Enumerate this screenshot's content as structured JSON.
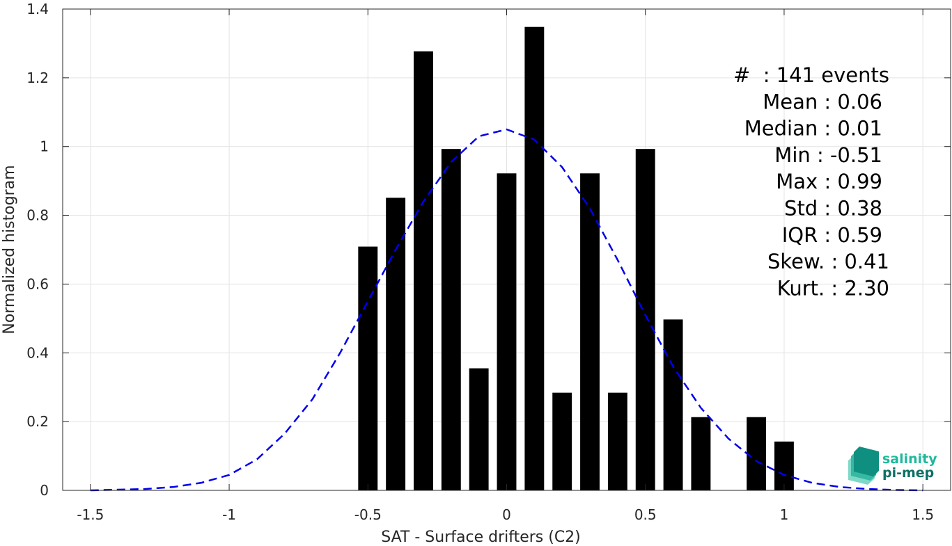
{
  "chart_data": {
    "type": "bar",
    "xlabel": "SAT - Surface drifters (C2)",
    "ylabel": "Normalized histogram",
    "xlim": [
      -1.6,
      1.6
    ],
    "ylim": [
      0,
      1.4
    ],
    "x_ticks": [
      -1.5,
      -1,
      -0.5,
      0,
      0.5,
      1,
      1.5
    ],
    "x_tick_labels": [
      "-1.5",
      "-1",
      "-0.5",
      "0",
      "0.5",
      "1",
      "1.5"
    ],
    "y_ticks": [
      0,
      0.2,
      0.4,
      0.6,
      0.8,
      1,
      1.2,
      1.4
    ],
    "y_tick_labels": [
      "0",
      "0.2",
      "0.4",
      "0.6",
      "0.8",
      "1",
      "1.2",
      "1.4"
    ],
    "grid": true,
    "bar_color": "#000000",
    "bars": {
      "x": [
        -0.5,
        -0.4,
        -0.3,
        -0.2,
        -0.1,
        0.0,
        0.1,
        0.2,
        0.3,
        0.4,
        0.5,
        0.6,
        0.7,
        0.8,
        0.9,
        1.0
      ],
      "values": [
        0.709,
        0.851,
        1.277,
        0.993,
        0.355,
        0.922,
        1.348,
        0.284,
        0.922,
        0.284,
        0.993,
        0.497,
        0.213,
        0,
        0.213,
        0.142
      ],
      "width": 0.07
    },
    "fit_curve": {
      "style": "dashed",
      "color": "#0000ee",
      "x": [
        -1.5,
        -1.4,
        -1.3,
        -1.2,
        -1.1,
        -1.0,
        -0.9,
        -0.8,
        -0.7,
        -0.6,
        -0.5,
        -0.4,
        -0.3,
        -0.2,
        -0.1,
        0.0,
        0.1,
        0.2,
        0.3,
        0.4,
        0.5,
        0.6,
        0.7,
        0.8,
        0.9,
        1.0,
        1.1,
        1.2,
        1.3,
        1.4,
        1.5
      ],
      "y": [
        0.0,
        0.002,
        0.004,
        0.01,
        0.022,
        0.045,
        0.09,
        0.165,
        0.265,
        0.4,
        0.55,
        0.7,
        0.84,
        0.955,
        1.03,
        1.05,
        1.02,
        0.94,
        0.82,
        0.67,
        0.51,
        0.36,
        0.24,
        0.15,
        0.085,
        0.045,
        0.022,
        0.01,
        0.004,
        0.001,
        0.0
      ]
    },
    "annotation_lines": [
      "#  : 141 events",
      "Mean : 0.06",
      "Median : 0.01",
      "Min : -0.51",
      "Max : 0.99",
      "Std : 0.38",
      "IQR : 0.59",
      "Skew. : 0.41",
      "Kurt. : 2.30"
    ]
  },
  "logo": {
    "line1": "salinity",
    "line2": "pi-mep",
    "color1": "#1fb89b",
    "color2": "#0c6f66"
  }
}
